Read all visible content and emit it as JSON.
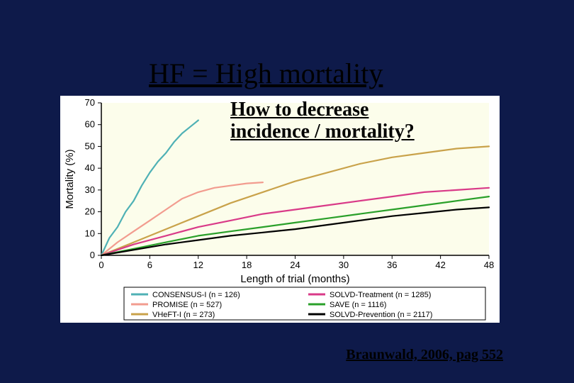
{
  "titles": {
    "main": "HF = High mortality",
    "question_line1": "How to decrease",
    "question_line2": "incidence / mortality?",
    "citation": "Braunwald, 2006, pag 552"
  },
  "chart": {
    "type": "line",
    "background_color": "#ffffff",
    "plot_background": "#fcfdeb",
    "axis_color": "#000000",
    "grid_color": "#cccccc",
    "grid": false,
    "xlabel": "Length of trial (months)",
    "ylabel": "Mortality (%)",
    "label_fontsize": 15,
    "tick_fontsize": 13,
    "xlim": [
      0,
      48
    ],
    "ylim": [
      0,
      70
    ],
    "xticks": [
      0,
      6,
      12,
      18,
      24,
      30,
      36,
      42,
      48
    ],
    "yticks": [
      0,
      10,
      20,
      30,
      40,
      50,
      60,
      70
    ],
    "line_width": 2.2,
    "series": [
      {
        "name": "CONSENSUS-I",
        "n": 126,
        "color": "#4fb1b5",
        "points": [
          [
            0,
            0
          ],
          [
            1,
            8
          ],
          [
            2,
            13
          ],
          [
            3,
            20
          ],
          [
            4,
            25
          ],
          [
            5,
            32
          ],
          [
            6,
            38
          ],
          [
            7,
            43
          ],
          [
            8,
            47
          ],
          [
            9,
            52
          ],
          [
            10,
            56
          ],
          [
            11,
            59
          ],
          [
            12,
            62
          ]
        ]
      },
      {
        "name": "PROMISE",
        "n": 527,
        "color": "#f29c8f",
        "points": [
          [
            0,
            0
          ],
          [
            2,
            6
          ],
          [
            4,
            11
          ],
          [
            6,
            16
          ],
          [
            8,
            21
          ],
          [
            10,
            26
          ],
          [
            12,
            29
          ],
          [
            14,
            31
          ],
          [
            16,
            32
          ],
          [
            18,
            33
          ],
          [
            20,
            33.5
          ]
        ]
      },
      {
        "name": "VHeFT-I",
        "n": 273,
        "color": "#c9a24a",
        "points": [
          [
            0,
            0
          ],
          [
            4,
            6
          ],
          [
            8,
            12
          ],
          [
            12,
            18
          ],
          [
            16,
            24
          ],
          [
            20,
            29
          ],
          [
            24,
            34
          ],
          [
            28,
            38
          ],
          [
            32,
            42
          ],
          [
            36,
            45
          ],
          [
            40,
            47
          ],
          [
            44,
            49
          ],
          [
            48,
            50
          ]
        ]
      },
      {
        "name": "SOLVD-Treatment",
        "n": 1285,
        "color": "#d93a88",
        "points": [
          [
            0,
            0
          ],
          [
            4,
            5
          ],
          [
            8,
            9
          ],
          [
            12,
            13
          ],
          [
            16,
            16
          ],
          [
            20,
            19
          ],
          [
            24,
            21
          ],
          [
            28,
            23
          ],
          [
            32,
            25
          ],
          [
            36,
            27
          ],
          [
            40,
            29
          ],
          [
            44,
            30
          ],
          [
            48,
            31
          ]
        ]
      },
      {
        "name": "SAVE",
        "n": 1116,
        "color": "#2aa02a",
        "points": [
          [
            0,
            0
          ],
          [
            4,
            3
          ],
          [
            8,
            6
          ],
          [
            12,
            9
          ],
          [
            16,
            11
          ],
          [
            20,
            13
          ],
          [
            24,
            15
          ],
          [
            28,
            17
          ],
          [
            32,
            19
          ],
          [
            36,
            21
          ],
          [
            40,
            23
          ],
          [
            44,
            25
          ],
          [
            48,
            27
          ]
        ]
      },
      {
        "name": "SOLVD-Prevention",
        "n": 2117,
        "color": "#000000",
        "points": [
          [
            0,
            0
          ],
          [
            4,
            2.5
          ],
          [
            8,
            5
          ],
          [
            12,
            7
          ],
          [
            16,
            9
          ],
          [
            20,
            10.5
          ],
          [
            24,
            12
          ],
          [
            28,
            14
          ],
          [
            32,
            16
          ],
          [
            36,
            18
          ],
          [
            40,
            19.5
          ],
          [
            44,
            21
          ],
          [
            48,
            22
          ]
        ]
      }
    ],
    "legend": {
      "columns": 2,
      "box_border": "#000000",
      "font_size": 11,
      "order": [
        [
          "CONSENSUS-I",
          "SOLVD-Treatment"
        ],
        [
          "PROMISE",
          "SAVE"
        ],
        [
          "VHeFT-I",
          "SOLVD-Prevention"
        ]
      ]
    }
  }
}
